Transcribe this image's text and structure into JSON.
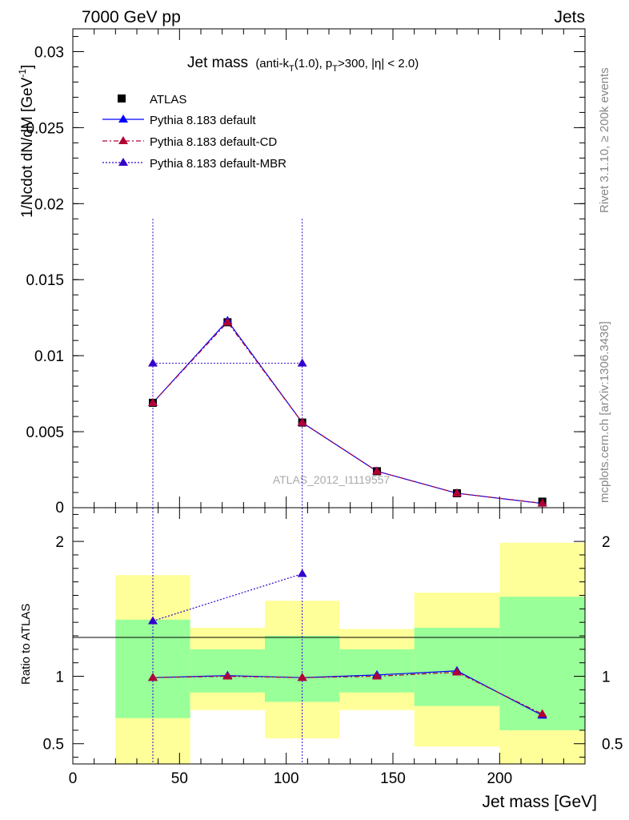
{
  "header": {
    "left": "7000 GeV pp",
    "right": "Jets",
    "side_text_upper": "Rivet 3.1.10, ≥ 200k events",
    "side_text_lower": "mcplots.cern.ch [arXiv:1306.3436]",
    "watermark": "ATLAS_2012_I1119557"
  },
  "colors": {
    "data": "#000000",
    "default": "#0000ff",
    "cd": "#b00034",
    "mbr": "#3300cc",
    "band_outer": "#ffff99",
    "band_inner": "#99ff99"
  },
  "chart_data": [
    {
      "type": "scatter",
      "title": {
        "main": "Jet mass",
        "p1": "(anti-k",
        "s1": "T",
        "p2": "(1.0), p",
        "s2": "T",
        "p3": ">300, |η| < 2.0)"
      },
      "ylabel": "1/Ncdot dN/dM [GeV",
      "ylabel_sup": "-1",
      "ylabel_close": "]",
      "xlim": [
        0,
        240
      ],
      "ylim": [
        0,
        0.0315
      ],
      "yticks": [
        {
          "v": 0.005,
          "label": "0.005"
        },
        {
          "v": 0.01,
          "label": "0.01"
        },
        {
          "v": 0.015,
          "label": "0.015"
        },
        {
          "v": 0.02,
          "label": "0.02"
        },
        {
          "v": 0.025,
          "label": "0.025"
        },
        {
          "v": 0.03,
          "label": "0.03"
        }
      ],
      "ytick_zero": "0",
      "legend": [
        "ATLAS",
        "Pythia 8.183 default",
        "Pythia 8.183 default-CD",
        "Pythia 8.183 default-MBR"
      ],
      "x": [
        37.5,
        72.5,
        107.5,
        142.5,
        180,
        220
      ],
      "data": [
        0.0069,
        0.0122,
        0.0056,
        0.0024,
        0.00095,
        0.0004
      ],
      "series": [
        {
          "name": "Pythia 8.183 default",
          "values": [
            0.0069,
            0.0123,
            0.0056,
            0.0024,
            0.00095,
            0.00028
          ]
        },
        {
          "name": "Pythia 8.183 default-CD",
          "values": [
            0.0069,
            0.0122,
            0.0056,
            0.0024,
            0.00095,
            0.00029
          ]
        },
        {
          "name": "Pythia 8.183 default-MBR",
          "values": [
            0.0095,
            null,
            0.0095,
            null,
            null,
            null
          ]
        }
      ],
      "mbr_errors": [
        {
          "x": 37.5,
          "ylow": 0,
          "yhigh": 0.019
        },
        {
          "x": 107.5,
          "ylow": 0,
          "yhigh": 0.019
        }
      ]
    },
    {
      "type": "scatter",
      "ylabel": "Ratio to ATLAS",
      "xlabel": "Jet mass [GeV]",
      "xlim": [
        0,
        240
      ],
      "ylim": [
        0.35,
        2.25
      ],
      "yticks": [
        {
          "v": 0.5,
          "label": "0.5"
        },
        {
          "v": 1,
          "label": "1"
        },
        {
          "v": 2,
          "label": "2"
        }
      ],
      "xticks": [
        {
          "v": 0,
          "label": "0"
        },
        {
          "v": 50,
          "label": "50"
        },
        {
          "v": 100,
          "label": "100"
        },
        {
          "v": 150,
          "label": "150"
        },
        {
          "v": 200,
          "label": "200"
        }
      ],
      "bands": [
        {
          "x0": 20,
          "x1": 55,
          "outer": [
            0.35,
            1.75
          ],
          "inner": [
            0.69,
            1.42
          ]
        },
        {
          "x0": 55,
          "x1": 90,
          "outer": [
            0.75,
            1.36
          ],
          "inner": [
            0.88,
            1.2
          ]
        },
        {
          "x0": 90,
          "x1": 125,
          "outer": [
            0.54,
            1.56
          ],
          "inner": [
            0.81,
            1.3
          ]
        },
        {
          "x0": 125,
          "x1": 160,
          "outer": [
            0.75,
            1.35
          ],
          "inner": [
            0.88,
            1.2
          ]
        },
        {
          "x0": 160,
          "x1": 200,
          "outer": [
            0.48,
            1.62
          ],
          "inner": [
            0.78,
            1.36
          ]
        },
        {
          "x0": 200,
          "x1": 240,
          "outer": [
            0.35,
            1.99
          ],
          "inner": [
            0.6,
            1.59
          ]
        }
      ],
      "series": [
        {
          "name": "Pythia 8.183 default",
          "values": [
            0.99,
            1.005,
            0.99,
            1.01,
            1.04,
            0.71
          ]
        },
        {
          "name": "Pythia 8.183 default-CD",
          "values": [
            0.99,
            1.0,
            0.99,
            1.0,
            1.03,
            0.72
          ]
        },
        {
          "name": "Pythia 8.183 default-MBR",
          "values": [
            1.41,
            null,
            1.76,
            null,
            null,
            null
          ]
        }
      ]
    }
  ]
}
